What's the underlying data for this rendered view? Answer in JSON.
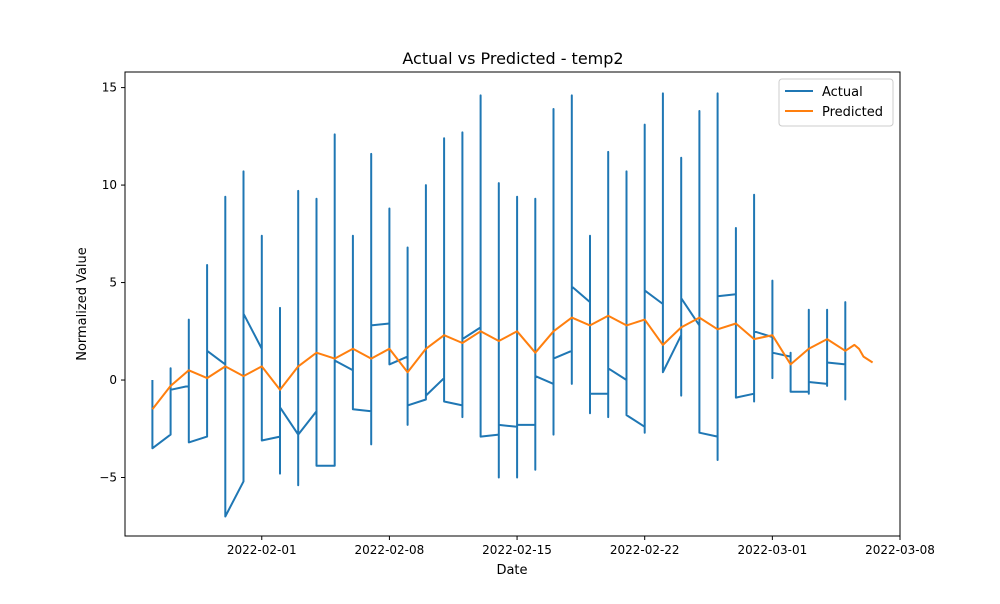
{
  "chart_data": {
    "type": "line",
    "title": "Actual vs Predicted - temp2",
    "xlabel": "Date",
    "ylabel": "Normalized Value",
    "xlim": [
      "2022-01-24T12:00",
      "2022-03-08"
    ],
    "ylim": [
      -8,
      15.8
    ],
    "x_ticks": [
      "2022-02-01",
      "2022-02-08",
      "2022-02-15",
      "2022-02-22",
      "2022-03-01",
      "2022-03-08"
    ],
    "y_ticks": [
      -5,
      0,
      5,
      10,
      15
    ],
    "y_tick_labels": [
      "−5",
      "0",
      "5",
      "10",
      "15"
    ],
    "grid": false,
    "legend": {
      "position": "top-right",
      "entries": [
        "Actual",
        "Predicted"
      ]
    },
    "colors": {
      "Actual": "#1f77b4",
      "Predicted": "#ff7f0e"
    },
    "series": [
      {
        "name": "Actual",
        "points": [
          [
            "2022-01-26T00:00",
            0.0
          ],
          [
            "2022-01-26T00:00",
            -3.5
          ],
          [
            "2022-01-27T00:00",
            -2.8
          ],
          [
            "2022-01-27T00:00",
            0.6
          ],
          [
            "2022-01-27T00:00",
            -0.5
          ],
          [
            "2022-01-28T00:00",
            -0.3
          ],
          [
            "2022-01-28T00:00",
            3.1
          ],
          [
            "2022-01-28T00:00",
            -3.2
          ],
          [
            "2022-01-29T00:00",
            -2.9
          ],
          [
            "2022-01-29T00:00",
            5.9
          ],
          [
            "2022-01-29T00:00",
            1.5
          ],
          [
            "2022-01-30T00:00",
            0.8
          ],
          [
            "2022-01-30T00:00",
            9.4
          ],
          [
            "2022-01-30T00:00",
            -7.0
          ],
          [
            "2022-01-31T00:00",
            -5.2
          ],
          [
            "2022-01-31T00:00",
            10.7
          ],
          [
            "2022-01-31T00:00",
            3.4
          ],
          [
            "2022-02-01T00:00",
            1.6
          ],
          [
            "2022-02-01T00:00",
            7.4
          ],
          [
            "2022-02-01T00:00",
            -3.1
          ],
          [
            "2022-02-02T00:00",
            -2.9
          ],
          [
            "2022-02-02T00:00",
            -4.8
          ],
          [
            "2022-02-02T00:00",
            3.7
          ],
          [
            "2022-02-02T00:00",
            -1.4
          ],
          [
            "2022-02-03T00:00",
            -2.8
          ],
          [
            "2022-02-03T00:00",
            -5.4
          ],
          [
            "2022-02-03T00:00",
            9.7
          ],
          [
            "2022-02-03T00:00",
            -2.8
          ],
          [
            "2022-02-04T00:00",
            -1.6
          ],
          [
            "2022-02-04T00:00",
            9.3
          ],
          [
            "2022-02-04T00:00",
            -4.4
          ],
          [
            "2022-02-05T00:00",
            -4.4
          ],
          [
            "2022-02-05T00:00",
            12.6
          ],
          [
            "2022-02-05T00:00",
            1.0
          ],
          [
            "2022-02-06T00:00",
            0.5
          ],
          [
            "2022-02-06T00:00",
            7.4
          ],
          [
            "2022-02-06T00:00",
            -1.5
          ],
          [
            "2022-02-07T00:00",
            -1.6
          ],
          [
            "2022-02-07T00:00",
            11.6
          ],
          [
            "2022-02-07T00:00",
            -3.3
          ],
          [
            "2022-02-07T00:00",
            2.8
          ],
          [
            "2022-02-08T00:00",
            2.9
          ],
          [
            "2022-02-08T00:00",
            8.8
          ],
          [
            "2022-02-08T00:00",
            0.8
          ],
          [
            "2022-02-09T00:00",
            1.2
          ],
          [
            "2022-02-09T00:00",
            6.8
          ],
          [
            "2022-02-09T00:00",
            -2.3
          ],
          [
            "2022-02-09T00:00",
            -1.3
          ],
          [
            "2022-02-10T00:00",
            -1.0
          ],
          [
            "2022-02-10T00:00",
            10.0
          ],
          [
            "2022-02-10T00:00",
            -0.8
          ],
          [
            "2022-02-11T00:00",
            0.1
          ],
          [
            "2022-02-11T00:00",
            12.4
          ],
          [
            "2022-02-11T00:00",
            -1.1
          ],
          [
            "2022-02-12T00:00",
            -1.3
          ],
          [
            "2022-02-12T00:00",
            12.7
          ],
          [
            "2022-02-12T00:00",
            -1.9
          ],
          [
            "2022-02-12T00:00",
            2.1
          ],
          [
            "2022-02-13T00:00",
            2.7
          ],
          [
            "2022-02-13T00:00",
            14.6
          ],
          [
            "2022-02-13T00:00",
            -2.9
          ],
          [
            "2022-02-14T00:00",
            -2.8
          ],
          [
            "2022-02-14T00:00",
            10.1
          ],
          [
            "2022-02-14T00:00",
            -5.0
          ],
          [
            "2022-02-14T00:00",
            -2.3
          ],
          [
            "2022-02-15T00:00",
            -2.4
          ],
          [
            "2022-02-15T00:00",
            9.4
          ],
          [
            "2022-02-15T00:00",
            -5.0
          ],
          [
            "2022-02-15T00:00",
            -2.3
          ],
          [
            "2022-02-16T00:00",
            -2.3
          ],
          [
            "2022-02-16T00:00",
            9.3
          ],
          [
            "2022-02-16T00:00",
            -4.6
          ],
          [
            "2022-02-16T00:00",
            0.2
          ],
          [
            "2022-02-17T00:00",
            -0.2
          ],
          [
            "2022-02-17T00:00",
            13.9
          ],
          [
            "2022-02-17T00:00",
            -2.8
          ],
          [
            "2022-02-17T00:00",
            1.1
          ],
          [
            "2022-02-18T00:00",
            1.5
          ],
          [
            "2022-02-18T00:00",
            14.6
          ],
          [
            "2022-02-18T00:00",
            -0.2
          ],
          [
            "2022-02-18T00:00",
            4.8
          ],
          [
            "2022-02-19T00:00",
            4.0
          ],
          [
            "2022-02-19T00:00",
            7.4
          ],
          [
            "2022-02-19T00:00",
            -1.7
          ],
          [
            "2022-02-19T00:00",
            -0.7
          ],
          [
            "2022-02-20T00:00",
            -0.7
          ],
          [
            "2022-02-20T00:00",
            11.7
          ],
          [
            "2022-02-20T00:00",
            -1.9
          ],
          [
            "2022-02-20T00:00",
            0.6
          ],
          [
            "2022-02-21T00:00",
            0.0
          ],
          [
            "2022-02-21T00:00",
            10.7
          ],
          [
            "2022-02-21T00:00",
            -1.8
          ],
          [
            "2022-02-22T00:00",
            -2.4
          ],
          [
            "2022-02-22T00:00",
            13.1
          ],
          [
            "2022-02-22T00:00",
            -2.7
          ],
          [
            "2022-02-22T00:00",
            4.6
          ],
          [
            "2022-02-23T00:00",
            3.9
          ],
          [
            "2022-02-23T00:00",
            14.7
          ],
          [
            "2022-02-23T00:00",
            0.4
          ],
          [
            "2022-02-24T00:00",
            2.3
          ],
          [
            "2022-02-24T00:00",
            11.4
          ],
          [
            "2022-02-24T00:00",
            -0.8
          ],
          [
            "2022-02-24T00:00",
            4.2
          ],
          [
            "2022-02-25T00:00",
            2.8
          ],
          [
            "2022-02-25T00:00",
            13.8
          ],
          [
            "2022-02-25T00:00",
            -2.7
          ],
          [
            "2022-02-26T00:00",
            -2.9
          ],
          [
            "2022-02-26T00:00",
            14.7
          ],
          [
            "2022-02-26T00:00",
            -4.1
          ],
          [
            "2022-02-26T00:00",
            4.3
          ],
          [
            "2022-02-27T00:00",
            4.4
          ],
          [
            "2022-02-27T00:00",
            7.8
          ],
          [
            "2022-02-27T00:00",
            -0.9
          ],
          [
            "2022-02-28T00:00",
            -0.7
          ],
          [
            "2022-02-28T00:00",
            9.5
          ],
          [
            "2022-02-28T00:00",
            -1.1
          ],
          [
            "2022-02-28T00:00",
            2.5
          ],
          [
            "2022-03-01T00:00",
            2.2
          ],
          [
            "2022-03-01T00:00",
            5.1
          ],
          [
            "2022-03-01T00:00",
            0.1
          ],
          [
            "2022-03-01T00:00",
            1.4
          ],
          [
            "2022-03-02T00:00",
            1.2
          ],
          [
            "2022-03-02T00:00",
            1.4
          ],
          [
            "2022-03-02T00:00",
            -0.6
          ],
          [
            "2022-03-03T00:00",
            -0.6
          ],
          [
            "2022-03-03T00:00",
            3.6
          ],
          [
            "2022-03-03T00:00",
            -0.7
          ],
          [
            "2022-03-03T00:00",
            -0.1
          ],
          [
            "2022-03-04T00:00",
            -0.2
          ],
          [
            "2022-03-04T00:00",
            3.6
          ],
          [
            "2022-03-04T00:00",
            -0.3
          ],
          [
            "2022-03-04T00:00",
            0.9
          ],
          [
            "2022-03-05T00:00",
            0.8
          ],
          [
            "2022-03-05T00:00",
            4.0
          ],
          [
            "2022-03-05T00:00",
            -1.0
          ],
          [
            "2022-03-05T00:00",
            4.0
          ]
        ]
      },
      {
        "name": "Predicted",
        "points": [
          [
            "2022-01-26T00:00",
            -1.5
          ],
          [
            "2022-01-27T00:00",
            -0.3
          ],
          [
            "2022-01-28T00:00",
            0.5
          ],
          [
            "2022-01-29T00:00",
            0.1
          ],
          [
            "2022-01-30T00:00",
            0.7
          ],
          [
            "2022-01-31T00:00",
            0.2
          ],
          [
            "2022-02-01T00:00",
            0.7
          ],
          [
            "2022-02-02T00:00",
            -0.5
          ],
          [
            "2022-02-03T00:00",
            0.7
          ],
          [
            "2022-02-04T00:00",
            1.4
          ],
          [
            "2022-02-05T00:00",
            1.1
          ],
          [
            "2022-02-06T00:00",
            1.6
          ],
          [
            "2022-02-07T00:00",
            1.1
          ],
          [
            "2022-02-08T00:00",
            1.6
          ],
          [
            "2022-02-09T00:00",
            0.4
          ],
          [
            "2022-02-10T00:00",
            1.6
          ],
          [
            "2022-02-11T00:00",
            2.3
          ],
          [
            "2022-02-12T00:00",
            1.9
          ],
          [
            "2022-02-13T00:00",
            2.5
          ],
          [
            "2022-02-14T00:00",
            2.0
          ],
          [
            "2022-02-15T00:00",
            2.5
          ],
          [
            "2022-02-16T00:00",
            1.4
          ],
          [
            "2022-02-17T00:00",
            2.5
          ],
          [
            "2022-02-18T00:00",
            3.2
          ],
          [
            "2022-02-19T00:00",
            2.8
          ],
          [
            "2022-02-20T00:00",
            3.3
          ],
          [
            "2022-02-21T00:00",
            2.8
          ],
          [
            "2022-02-22T00:00",
            3.1
          ],
          [
            "2022-02-23T00:00",
            1.8
          ],
          [
            "2022-02-24T00:00",
            2.7
          ],
          [
            "2022-02-25T00:00",
            3.2
          ],
          [
            "2022-02-26T00:00",
            2.6
          ],
          [
            "2022-02-27T00:00",
            2.9
          ],
          [
            "2022-02-28T00:00",
            2.1
          ],
          [
            "2022-03-01T00:00",
            2.3
          ],
          [
            "2022-03-02T00:00",
            0.8
          ],
          [
            "2022-03-03T00:00",
            1.6
          ],
          [
            "2022-03-04T00:00",
            2.1
          ],
          [
            "2022-03-05T00:00",
            1.5
          ],
          [
            "2022-03-05T12:00",
            1.8
          ],
          [
            "2022-03-05T18:00",
            1.6
          ],
          [
            "2022-03-06T00:00",
            1.2
          ],
          [
            "2022-03-06T12:00",
            0.9
          ]
        ]
      }
    ]
  }
}
